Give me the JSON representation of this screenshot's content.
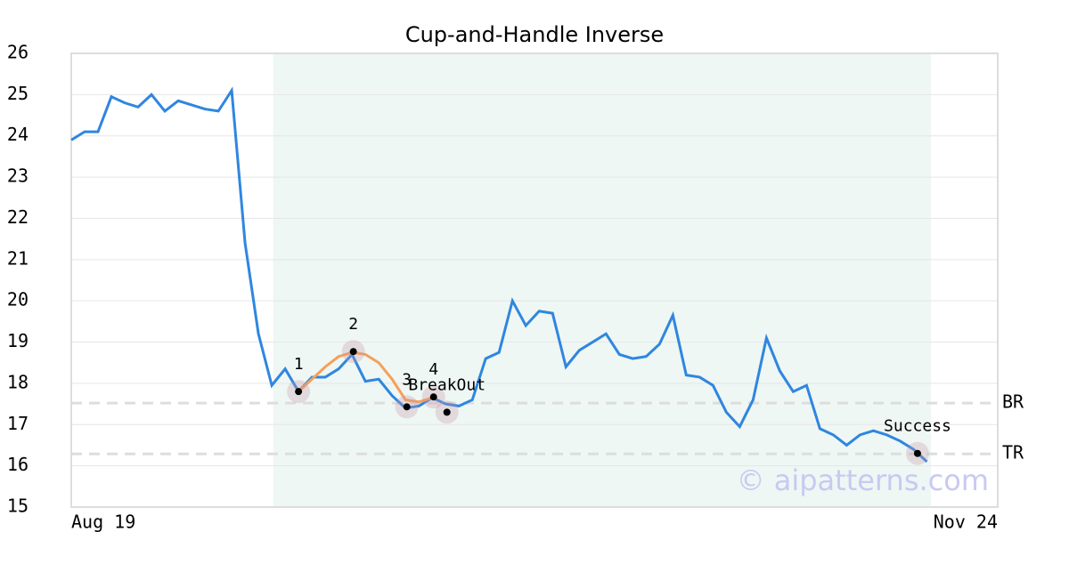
{
  "chart_data": {
    "type": "line",
    "title": "Cup-and-Handle Inverse",
    "x_labels": [
      "Aug 19",
      "Nov 24"
    ],
    "xlim": [
      0,
      69.3
    ],
    "ylim": [
      15,
      26
    ],
    "yticks": [
      15,
      16,
      17,
      18,
      19,
      20,
      21,
      22,
      23,
      24,
      25,
      26
    ],
    "grid": true,
    "shade": [
      15.1,
      64.3
    ],
    "series": [
      {
        "name": "Price",
        "color": "#2f86e0",
        "values": [
          23.9,
          24.1,
          24.1,
          24.95,
          24.8,
          24.7,
          25.0,
          24.6,
          24.85,
          24.75,
          24.65,
          24.6,
          25.1,
          21.4,
          19.2,
          17.95,
          18.35,
          17.8,
          18.15,
          18.15,
          18.35,
          18.7,
          18.05,
          18.1,
          17.7,
          17.4,
          17.45,
          17.65,
          17.5,
          17.45,
          17.6,
          18.6,
          18.75,
          20.0,
          19.4,
          19.75,
          19.7,
          18.4,
          18.8,
          19.0,
          19.2,
          18.7,
          18.6,
          18.65,
          18.95,
          19.65,
          18.2,
          18.15,
          17.95,
          17.3,
          16.95,
          17.6,
          19.1,
          18.3,
          17.8,
          17.95,
          16.9,
          16.75,
          16.5,
          16.75,
          16.85,
          16.75,
          16.6,
          16.4,
          16.1
        ]
      },
      {
        "name": "Pattern",
        "color": "#f5a05a",
        "values": [
          null,
          null,
          null,
          null,
          null,
          null,
          null,
          null,
          null,
          null,
          null,
          null,
          null,
          null,
          null,
          null,
          null,
          17.8,
          18.1,
          18.4,
          18.65,
          18.75,
          18.7,
          18.5,
          18.1,
          17.6,
          17.55,
          17.65,
          null,
          null,
          null,
          null,
          null,
          null,
          null,
          null,
          null,
          null,
          null,
          null,
          null,
          null,
          null,
          null,
          null,
          null,
          null,
          null,
          null,
          null,
          null,
          null,
          null,
          null,
          null,
          null,
          null,
          null,
          null,
          null,
          null,
          null,
          null,
          null,
          null
        ]
      }
    ],
    "markers": [
      {
        "label": "1",
        "x": 17,
        "y": 17.8
      },
      {
        "label": "2",
        "x": 21.1,
        "y": 18.77
      },
      {
        "label": "3",
        "x": 25.1,
        "y": 17.43
      },
      {
        "label": "4",
        "x": 27.1,
        "y": 17.67
      },
      {
        "label": "BreakOut",
        "x": 28.1,
        "y": 17.3
      },
      {
        "label": "Success",
        "x": 63.3,
        "y": 16.3
      }
    ],
    "levels": [
      {
        "label": "BR",
        "value": 17.52
      },
      {
        "label": "TR",
        "value": 16.29
      }
    ],
    "watermark": "© aipatterns.com"
  }
}
